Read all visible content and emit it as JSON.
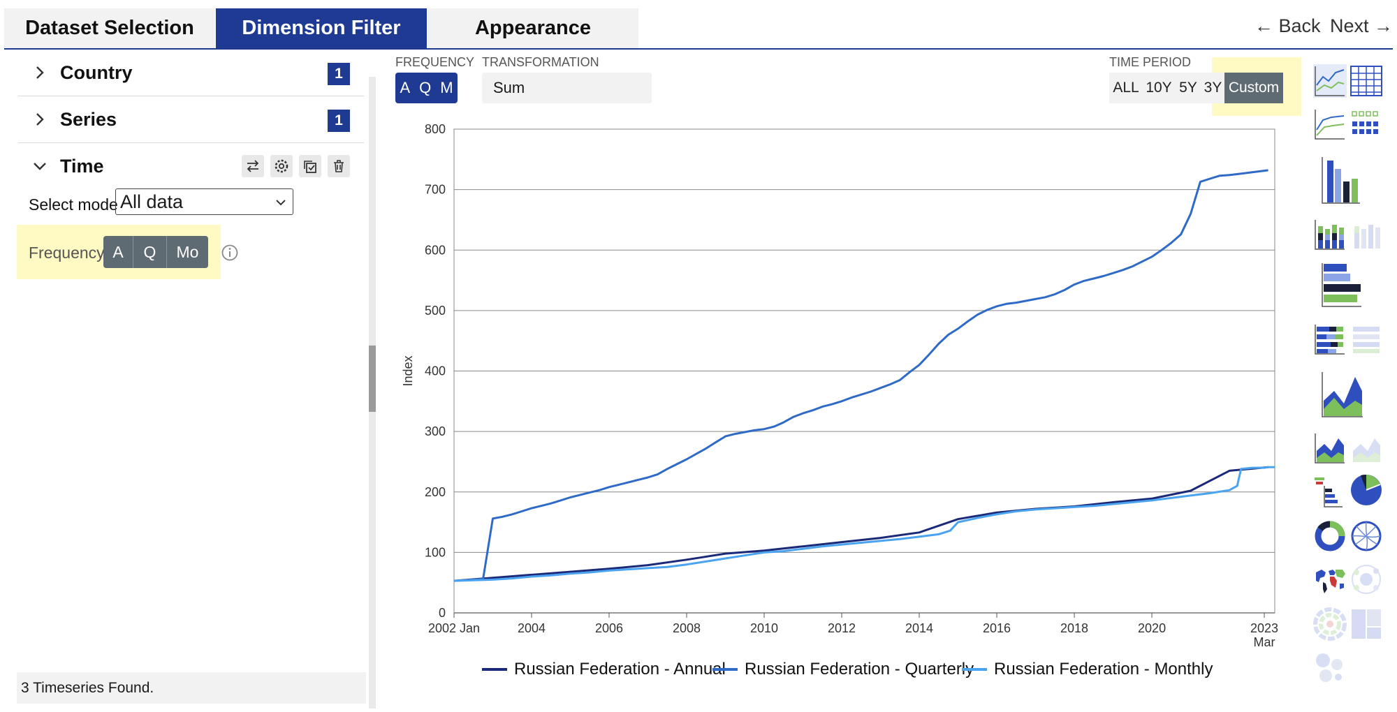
{
  "tabs": [
    {
      "label": "Dataset Selection",
      "active": false
    },
    {
      "label": "Dimension Filter",
      "active": true
    },
    {
      "label": "Appearance",
      "active": false
    }
  ],
  "nav": {
    "back": "← Back",
    "next": "Next →"
  },
  "left": {
    "country": {
      "label": "Country",
      "count": "1"
    },
    "series": {
      "label": "Series",
      "count": "1"
    },
    "time": {
      "label": "Time"
    },
    "select_mode": {
      "label": "Select mode",
      "value": "All data"
    },
    "frequency": {
      "label": "Frequency",
      "options": [
        "A",
        "Q",
        "Mo"
      ]
    },
    "status": "3 Timeseries Found."
  },
  "controls": {
    "frequency": {
      "caption": "FREQUENCY",
      "options": [
        "A",
        "Q",
        "M"
      ]
    },
    "transformation": {
      "caption": "TRANSFORMATION",
      "value": "Sum"
    },
    "time_period": {
      "caption": "TIME PERIOD",
      "options": [
        "ALL",
        "10Y",
        "5Y",
        "3Y"
      ],
      "selected": "Custom"
    }
  },
  "chart_data": {
    "type": "line",
    "ylabel": "Index",
    "ylim": [
      0,
      800
    ],
    "yticks": [
      0,
      100,
      200,
      300,
      400,
      500,
      600,
      700,
      800
    ],
    "xlim": [
      2002.0,
      2023.17
    ],
    "xticks": [
      {
        "value": 2002.0,
        "label": "2002 Jan"
      },
      {
        "value": 2004,
        "label": "2004"
      },
      {
        "value": 2006,
        "label": "2006"
      },
      {
        "value": 2008,
        "label": "2008"
      },
      {
        "value": 2010,
        "label": "2010"
      },
      {
        "value": 2012,
        "label": "2012"
      },
      {
        "value": 2014,
        "label": "2014"
      },
      {
        "value": 2016,
        "label": "2016"
      },
      {
        "value": 2018,
        "label": "2018"
      },
      {
        "value": 2020,
        "label": "2020"
      },
      {
        "value": 2022.9,
        "label": "2023",
        "sublabel": "Mar"
      }
    ],
    "grid": true,
    "legend_position": "bottom",
    "series": [
      {
        "name": "Russian Federation - Annual",
        "color": "#1a2a78",
        "x": [
          2002,
          2003,
          2004,
          2005,
          2006,
          2007,
          2008,
          2009,
          2010,
          2011,
          2012,
          2013,
          2014,
          2015,
          2016,
          2017,
          2018,
          2019,
          2020,
          2021,
          2022,
          2023
        ],
        "y": [
          53,
          58,
          63,
          68,
          73,
          79,
          88,
          98,
          103,
          110,
          117,
          124,
          133,
          155,
          166,
          172,
          176,
          183,
          189,
          202,
          235,
          241
        ]
      },
      {
        "name": "Russian Federation - Quarterly",
        "color": "#2f6ac7",
        "x": [
          2002,
          2002.25,
          2002.5,
          2002.75,
          2003,
          2003.25,
          2003.5,
          2003.75,
          2004,
          2004.25,
          2004.5,
          2004.75,
          2005,
          2005.25,
          2005.5,
          2005.75,
          2006,
          2006.25,
          2006.5,
          2006.75,
          2007,
          2007.25,
          2007.5,
          2007.75,
          2008,
          2008.25,
          2008.5,
          2008.75,
          2009,
          2009.25,
          2009.5,
          2009.75,
          2010,
          2010.25,
          2010.5,
          2010.75,
          2011,
          2011.25,
          2011.5,
          2011.75,
          2012,
          2012.25,
          2012.5,
          2012.75,
          2013,
          2013.25,
          2013.5,
          2013.75,
          2014,
          2014.25,
          2014.5,
          2014.75,
          2015,
          2015.25,
          2015.5,
          2015.75,
          2016,
          2016.25,
          2016.5,
          2016.75,
          2017,
          2017.25,
          2017.5,
          2017.75,
          2018,
          2018.25,
          2018.5,
          2018.75,
          2019,
          2019.25,
          2019.5,
          2019.75,
          2020,
          2020.25,
          2020.5,
          2020.75,
          2021,
          2021.25,
          2021.5,
          2021.75,
          2022,
          2022.25,
          2022.5,
          2022.75,
          2023
        ],
        "y": [
          53,
          54,
          55,
          56,
          156,
          159,
          163,
          168,
          173,
          177,
          181,
          186,
          191,
          195,
          199,
          203,
          208,
          212,
          216,
          220,
          224,
          229,
          238,
          246,
          254,
          263,
          272,
          282,
          292,
          296,
          299,
          302,
          304,
          308,
          315,
          324,
          330,
          335,
          341,
          345,
          350,
          356,
          361,
          366,
          372,
          378,
          385,
          398,
          410,
          427,
          445,
          460,
          470,
          482,
          493,
          501,
          507,
          511,
          513,
          516,
          519,
          522,
          527,
          534,
          543,
          549,
          553,
          557,
          562,
          567,
          573,
          581,
          589,
          600,
          612,
          626,
          660,
          713,
          718,
          723,
          724,
          726,
          728,
          730,
          732
        ]
      },
      {
        "name": "Russian Federation - Monthly",
        "color": "#4aa3ef",
        "x": [
          2002,
          2002.5,
          2003,
          2003.5,
          2004,
          2004.5,
          2005,
          2005.5,
          2006,
          2006.5,
          2007,
          2007.5,
          2008,
          2008.5,
          2009,
          2009.5,
          2010,
          2010.5,
          2011,
          2011.5,
          2012,
          2012.5,
          2013,
          2013.5,
          2014,
          2014.5,
          2014.8,
          2015,
          2015.5,
          2016,
          2016.5,
          2017,
          2017.5,
          2018,
          2018.5,
          2019,
          2019.5,
          2020,
          2020.5,
          2021,
          2021.5,
          2022,
          2022.2,
          2022.3,
          2022.6,
          2022.9,
          2023,
          2023.17
        ],
        "y": [
          53,
          54,
          55,
          57,
          60,
          62,
          65,
          67,
          70,
          72,
          74,
          76,
          80,
          85,
          90,
          95,
          100,
          102,
          106,
          110,
          113,
          116,
          119,
          122,
          126,
          130,
          136,
          150,
          157,
          163,
          168,
          171,
          173,
          175,
          177,
          180,
          183,
          186,
          190,
          194,
          198,
          203,
          210,
          238,
          240,
          240,
          241,
          241
        ]
      }
    ]
  },
  "chart_gallery": [
    "line-chart-icon",
    "table-icon",
    "multi-line-chart-icon",
    "dot-matrix-icon",
    "bar-chart-icon",
    "stacked-bar-chart-icon",
    "stacked-bar-light-icon",
    "horizontal-bar-chart-icon",
    "horizontal-stacked-bar-icon",
    "horizontal-stacked-bar-light-icon",
    "area-chart-icon",
    "stacked-area-chart-icon",
    "stacked-area-light-icon",
    "pyramid-chart-icon",
    "pie-chart-icon",
    "donut-chart-icon",
    "chord-diagram-icon",
    "world-map-icon",
    "bubble-chart-icon",
    "sunburst-chart-icon",
    "treemap-icon",
    "packed-circles-icon"
  ]
}
